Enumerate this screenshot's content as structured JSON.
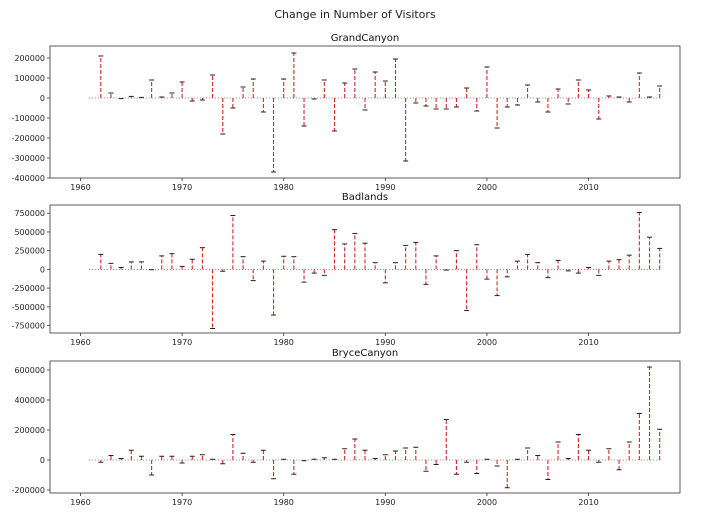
{
  "figure": {
    "suptitle": "Change in Number of Visitors"
  },
  "chart_data": [
    {
      "type": "bar",
      "title": "GrandCanyon",
      "xlim": [
        1957,
        2019
      ],
      "ylim": [
        -400000,
        260000
      ],
      "yticks": [
        -400000,
        -300000,
        -200000,
        -100000,
        0,
        100000,
        200000
      ],
      "xticks": [
        1960,
        1970,
        1980,
        1990,
        2000,
        2010
      ],
      "x": [
        1962,
        1963,
        1964,
        1965,
        1966,
        1967,
        1968,
        1969,
        1970,
        1971,
        1972,
        1973,
        1974,
        1975,
        1976,
        1977,
        1978,
        1979,
        1980,
        1981,
        1982,
        1983,
        1984,
        1985,
        1986,
        1987,
        1988,
        1989,
        1990,
        1991,
        1992,
        1993,
        1994,
        1995,
        1996,
        1997,
        1998,
        1999,
        2000,
        2001,
        2002,
        2003,
        2004,
        2005,
        2006,
        2007,
        2008,
        2009,
        2010,
        2011,
        2012,
        2013,
        2014,
        2015,
        2016,
        2017
      ],
      "values": [
        210000,
        25000,
        -3000,
        8000,
        3000,
        90000,
        5000,
        25000,
        80000,
        -15000,
        -10000,
        115000,
        -180000,
        -50000,
        55000,
        95000,
        -70000,
        -370000,
        95000,
        225000,
        -140000,
        -5000,
        90000,
        -165000,
        75000,
        145000,
        -60000,
        130000,
        85000,
        195000,
        -315000,
        -25000,
        -40000,
        -55000,
        -55000,
        -45000,
        50000,
        -65000,
        155000,
        -150000,
        -45000,
        -35000,
        65000,
        -20000,
        -70000,
        45000,
        -30000,
        90000,
        40000,
        -105000,
        10000,
        5000,
        -20000,
        125000,
        5000,
        60000
      ]
    },
    {
      "type": "bar",
      "title": "Badlands",
      "xlim": [
        1957,
        2019
      ],
      "ylim": [
        -850000,
        860000
      ],
      "yticks": [
        -750000,
        -500000,
        -250000,
        0,
        250000,
        500000,
        750000
      ],
      "xticks": [
        1960,
        1970,
        1980,
        1990,
        2000,
        2010
      ],
      "x": [
        1962,
        1963,
        1964,
        1965,
        1966,
        1967,
        1968,
        1969,
        1970,
        1971,
        1972,
        1973,
        1974,
        1975,
        1976,
        1977,
        1978,
        1979,
        1980,
        1981,
        1982,
        1983,
        1984,
        1985,
        1986,
        1987,
        1988,
        1989,
        1990,
        1991,
        1992,
        1993,
        1994,
        1995,
        1996,
        1997,
        1998,
        1999,
        2000,
        2001,
        2002,
        2003,
        2004,
        2005,
        2006,
        2007,
        2008,
        2009,
        2010,
        2011,
        2012,
        2013,
        2014,
        2015,
        2016,
        2017
      ],
      "values": [
        200000,
        80000,
        25000,
        100000,
        100000,
        -5000,
        180000,
        210000,
        40000,
        135000,
        290000,
        -790000,
        -25000,
        720000,
        170000,
        -150000,
        110000,
        -610000,
        175000,
        170000,
        -170000,
        -50000,
        -80000,
        530000,
        340000,
        480000,
        350000,
        90000,
        -180000,
        90000,
        320000,
        360000,
        -200000,
        180000,
        -10000,
        250000,
        -550000,
        330000,
        -130000,
        -350000,
        -100000,
        110000,
        200000,
        90000,
        -110000,
        120000,
        -20000,
        -50000,
        25000,
        -80000,
        110000,
        130000,
        190000,
        760000,
        430000,
        280000
      ]
    },
    {
      "type": "bar",
      "title": "BryceCanyon",
      "xlim": [
        1957,
        2019
      ],
      "ylim": [
        -220000,
        660000
      ],
      "yticks": [
        -200000,
        0,
        200000,
        400000,
        600000
      ],
      "xticks": [
        1960,
        1970,
        1980,
        1990,
        2000,
        2010
      ],
      "x": [
        1962,
        1963,
        1964,
        1965,
        1966,
        1967,
        1968,
        1969,
        1970,
        1971,
        1972,
        1973,
        1974,
        1975,
        1976,
        1977,
        1978,
        1979,
        1980,
        1981,
        1982,
        1983,
        1984,
        1985,
        1986,
        1987,
        1988,
        1989,
        1990,
        1991,
        1992,
        1993,
        1994,
        1995,
        1996,
        1997,
        1998,
        1999,
        2000,
        2001,
        2002,
        2003,
        2004,
        2005,
        2006,
        2007,
        2008,
        2009,
        2010,
        2011,
        2012,
        2013,
        2014,
        2015,
        2016,
        2017
      ],
      "values": [
        -15000,
        30000,
        10000,
        65000,
        25000,
        -100000,
        25000,
        25000,
        -20000,
        25000,
        35000,
        5000,
        -25000,
        170000,
        45000,
        -15000,
        65000,
        -125000,
        5000,
        -95000,
        -5000,
        5000,
        15000,
        5000,
        75000,
        140000,
        65000,
        10000,
        35000,
        60000,
        80000,
        85000,
        -75000,
        -30000,
        270000,
        -95000,
        -15000,
        -90000,
        5000,
        -40000,
        -185000,
        5000,
        80000,
        30000,
        -130000,
        120000,
        10000,
        170000,
        65000,
        -15000,
        75000,
        -65000,
        120000,
        310000,
        620000,
        205000
      ]
    }
  ]
}
